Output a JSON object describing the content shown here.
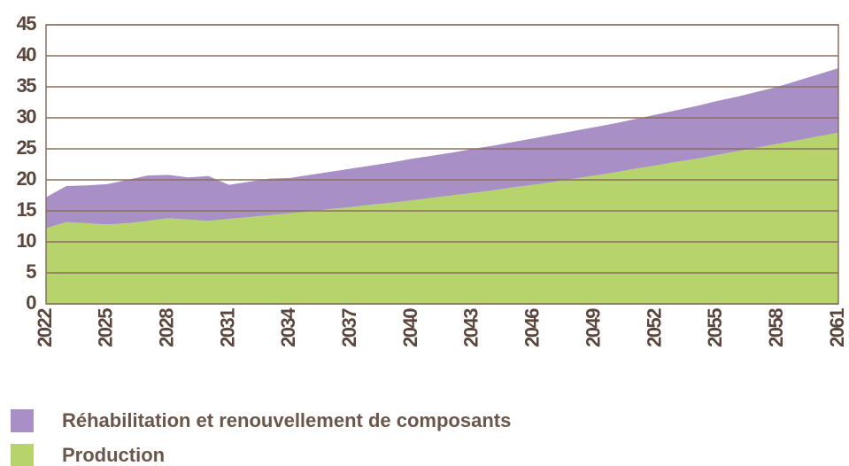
{
  "chart_data": {
    "type": "stacked_area",
    "categories": [
      "2022",
      null,
      null,
      "2025",
      null,
      null,
      "2028",
      null,
      null,
      "2031",
      null,
      null,
      "2034",
      null,
      null,
      "2037",
      null,
      null,
      "2040",
      null,
      null,
      "2043",
      null,
      null,
      "2046",
      null,
      null,
      "2049",
      null,
      null,
      "2052",
      null,
      null,
      "2055",
      null,
      null,
      "2058",
      null,
      null,
      "2061"
    ],
    "series": [
      {
        "name": "Réhabilitation et renouvellement de composants",
        "color": "#a88fc6",
        "values": [
          5.0,
          5.8,
          6.1,
          6.5,
          7.0,
          7.3,
          7.0,
          6.8,
          7.2,
          5.5,
          5.7,
          5.9,
          5.7,
          5.9,
          6.0,
          6.2,
          6.3,
          6.5,
          6.7,
          6.8,
          6.9,
          7.1,
          7.2,
          7.3,
          7.5,
          7.6,
          7.7,
          7.8,
          7.9,
          8.0,
          8.2,
          8.3,
          8.5,
          8.7,
          8.8,
          9.0,
          9.2,
          9.6,
          10.0,
          10.4
        ]
      },
      {
        "name": "Production",
        "color": "#b6d46b",
        "values": [
          12.2,
          13.2,
          13.0,
          12.8,
          13.0,
          13.4,
          13.8,
          13.6,
          13.4,
          13.7,
          14.0,
          14.3,
          14.6,
          14.9,
          15.3,
          15.6,
          16.0,
          16.3,
          16.7,
          17.1,
          17.5,
          17.9,
          18.3,
          18.8,
          19.2,
          19.7,
          20.2,
          20.7,
          21.2,
          21.8,
          22.3,
          22.9,
          23.4,
          24.0,
          24.6,
          25.2,
          25.8,
          26.4,
          27.0,
          27.6
        ]
      }
    ],
    "ylim": [
      0,
      45
    ],
    "yticks": [
      0,
      5,
      10,
      15,
      20,
      25,
      30,
      35,
      40,
      45
    ],
    "grid": true
  }
}
